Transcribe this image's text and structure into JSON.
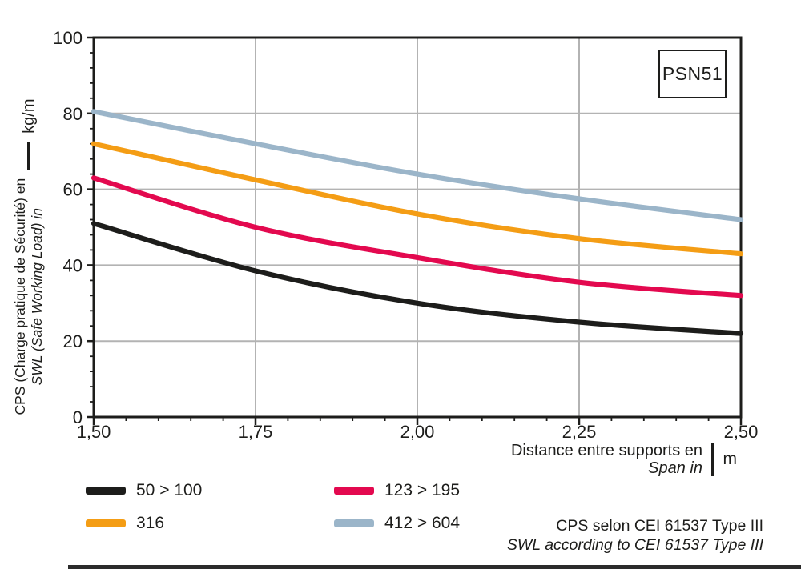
{
  "title_box": {
    "text": "PSN51"
  },
  "y_axis": {
    "label_fr": "CPS (Charge pratique de Sécurité) en",
    "label_en": "SWL (Safe Working Load) in",
    "unit": "kg/m"
  },
  "x_axis": {
    "label_fr": "Distance entre supports en",
    "label_en": "Span in",
    "unit": "m"
  },
  "footer": {
    "line_fr": "CPS selon CEI 61537 Type III",
    "line_en": "SWL according to CEI 61537 Type III"
  },
  "chart_data": {
    "type": "line",
    "title": "PSN51",
    "xlabel": "Distance entre supports en / Span in (m)",
    "ylabel": "CPS (Charge pratique de Sécurité) / SWL (Safe Working Load) (kg/m)",
    "x": [
      1.5,
      1.75,
      2.0,
      2.25,
      2.5
    ],
    "xtick_labels": [
      "1,50",
      "1,75",
      "2,00",
      "2,25",
      "2,50"
    ],
    "ytick_values": [
      0,
      20,
      40,
      60,
      80,
      100
    ],
    "xlim": [
      1.5,
      2.5
    ],
    "ylim": [
      0,
      100
    ],
    "x_minor_step": 0.05,
    "y_minor_step": 4,
    "grid": {
      "horizontal": [
        20,
        40,
        60,
        80
      ],
      "vertical": [
        1.75,
        2.0,
        2.25
      ],
      "color": "#b3b3b3"
    },
    "axis_color": "#1d1d1b",
    "legend_position": "bottom-left",
    "series": [
      {
        "label": "50 > 100",
        "color": "#1d1d1b",
        "values": [
          51.0,
          38.5,
          30.0,
          25.0,
          22.0
        ]
      },
      {
        "label": "316",
        "color": "#f49d15",
        "values": [
          72.0,
          62.5,
          53.5,
          47.0,
          43.0
        ]
      },
      {
        "label": "123 > 195",
        "color": "#e3094f",
        "values": [
          63.0,
          50.0,
          42.0,
          35.5,
          32.0
        ]
      },
      {
        "label": "412 > 604",
        "color": "#9bb5c9",
        "values": [
          80.5,
          72.0,
          64.0,
          57.5,
          52.0
        ]
      }
    ]
  }
}
